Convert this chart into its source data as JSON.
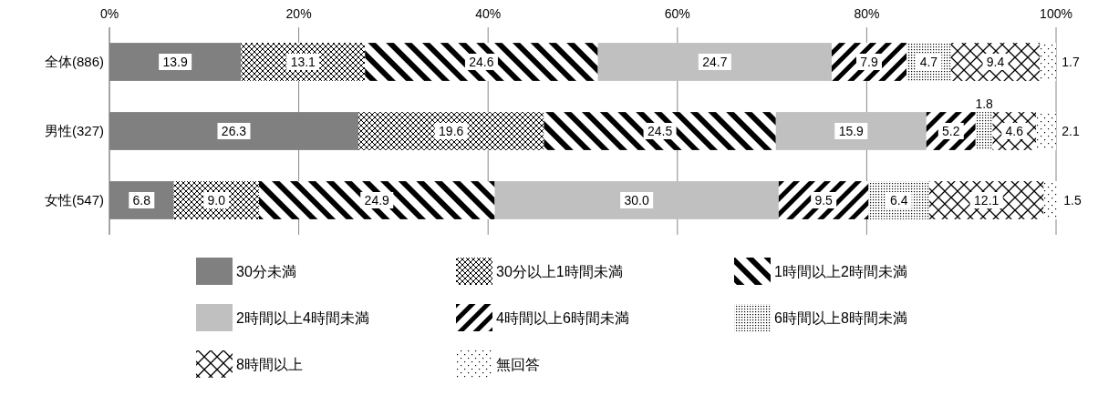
{
  "chart_data": {
    "type": "bar",
    "orientation": "horizontal",
    "stacked": true,
    "categories": [
      "全体(886)",
      "男性(327)",
      "女性(547)"
    ],
    "xlim": [
      0,
      100
    ],
    "xticks": [
      {
        "value": 0,
        "label": "0%"
      },
      {
        "value": 20,
        "label": "20%"
      },
      {
        "value": 40,
        "label": "40%"
      },
      {
        "value": 60,
        "label": "60%"
      },
      {
        "value": 80,
        "label": "80%"
      },
      {
        "value": 100,
        "label": "100%"
      }
    ],
    "grid": "x",
    "legend": "bottom",
    "series": [
      {
        "name": "30分未満",
        "color": "#808080",
        "values": [
          13.9,
          26.3,
          6.8
        ],
        "value_labels": [
          "13.9",
          "26.3",
          "6.8"
        ]
      },
      {
        "name": "30分以上1時間未満",
        "color": "#000000",
        "values": [
          13.1,
          19.6,
          9.0
        ],
        "value_labels": [
          "13.1",
          "19.6",
          "9.0"
        ]
      },
      {
        "name": "1時間以上2時間未満",
        "color": "#000000",
        "values": [
          24.6,
          24.5,
          24.9
        ],
        "value_labels": [
          "24.6",
          "24.5",
          "24.9"
        ]
      },
      {
        "name": "2時間以上4時間未満",
        "color": "#c0c0c0",
        "values": [
          24.7,
          15.9,
          30.0
        ],
        "value_labels": [
          "24.7",
          "15.9",
          "30.0"
        ]
      },
      {
        "name": "4時間以上6時間未満",
        "color": "#000000",
        "values": [
          7.9,
          5.2,
          9.5
        ],
        "value_labels": [
          "7.9",
          "5.2",
          "9.5"
        ]
      },
      {
        "name": "6時間以上8時間未満",
        "color": "#000000",
        "values": [
          4.7,
          1.8,
          6.4
        ],
        "value_labels": [
          "4.7",
          "1.8",
          "6.4"
        ]
      },
      {
        "name": "8時間以上",
        "color": "#000000",
        "values": [
          9.4,
          4.6,
          12.1
        ],
        "value_labels": [
          "9.4",
          "4.6",
          "12.1"
        ]
      },
      {
        "name": "無回答",
        "color": "#000000",
        "values": [
          1.7,
          2.1,
          1.5
        ],
        "value_labels": [
          "1.7",
          "2.1",
          "1.5"
        ]
      }
    ]
  }
}
